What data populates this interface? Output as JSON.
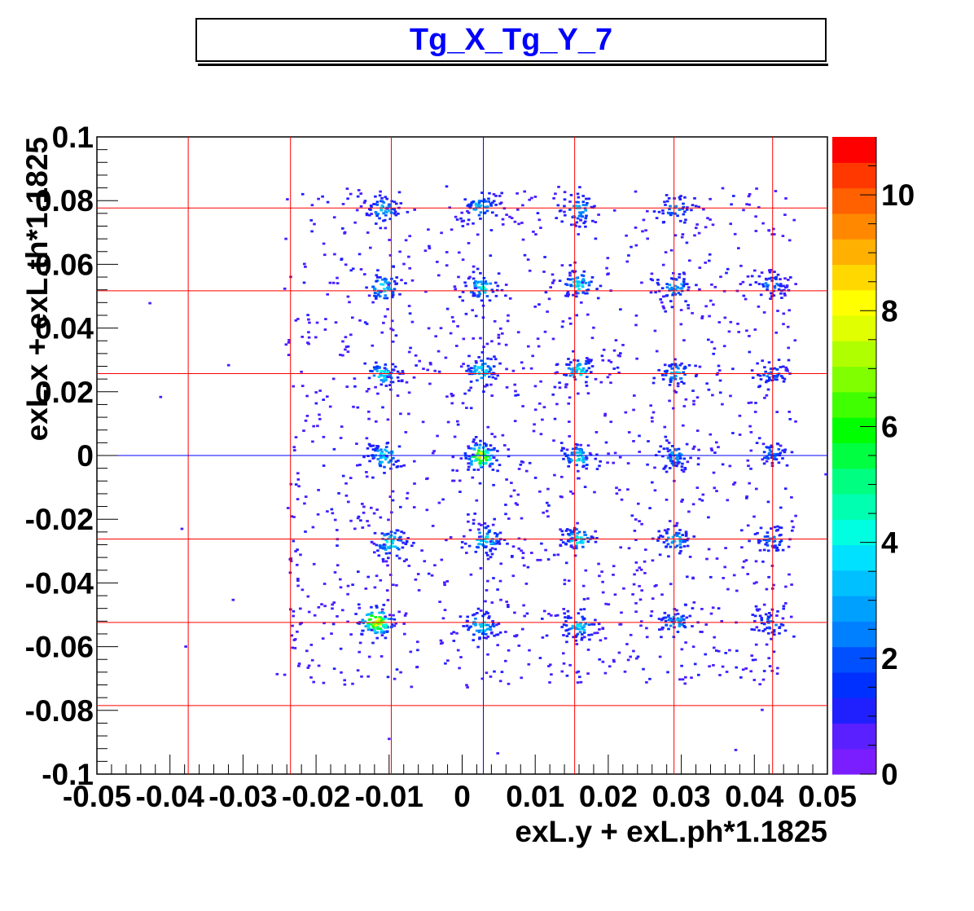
{
  "chart_data": {
    "type": "heatmap",
    "title": "Tg_X_Tg_Y_7",
    "xlabel": "exL.y + exL.ph*1.1825",
    "ylabel": "exL.x + exL.th*1.1825",
    "xlim": [
      -0.05,
      0.05
    ],
    "ylim": [
      -0.1,
      0.1
    ],
    "x_tick_labels": [
      "-0.05",
      "-0.04",
      "-0.03",
      "-0.02",
      "-0.01",
      "0",
      "0.01",
      "0.02",
      "0.03",
      "0.04",
      "0.05"
    ],
    "y_tick_labels": [
      "0.1",
      "0.08",
      "0.06",
      "0.04",
      "0.02",
      "0",
      "-0.02",
      "-0.04",
      "-0.06",
      "-0.08",
      "-0.1"
    ],
    "z_range": [
      0,
      11
    ],
    "colorbar_tick_labels": [
      "0",
      "2",
      "4",
      "6",
      "8",
      "10"
    ],
    "grid": false,
    "reference_lines": {
      "vertical_red_x": [
        -0.0375,
        -0.0235,
        -0.0097,
        0.0154,
        0.029,
        0.0425
      ],
      "vertical_blue_x": [
        0.0029
      ],
      "horizontal_red_y": [
        0.0777,
        0.0517,
        0.0257,
        -0.0262,
        -0.0524,
        -0.0785
      ],
      "horizontal_blue_y": [
        0.0
      ]
    },
    "clusters": [
      {
        "x": -0.011,
        "y": 0.0775,
        "peak": 4
      },
      {
        "x": 0.0024,
        "y": 0.0785,
        "peak": 4
      },
      {
        "x": 0.0157,
        "y": 0.0775,
        "peak": 4
      },
      {
        "x": 0.029,
        "y": 0.0775,
        "peak": 3
      },
      {
        "x": -0.011,
        "y": 0.053,
        "peak": 5
      },
      {
        "x": 0.0024,
        "y": 0.053,
        "peak": 5
      },
      {
        "x": 0.0157,
        "y": 0.054,
        "peak": 5
      },
      {
        "x": 0.029,
        "y": 0.053,
        "peak": 4
      },
      {
        "x": 0.0422,
        "y": 0.054,
        "peak": 3
      },
      {
        "x": -0.011,
        "y": 0.026,
        "peak": 5
      },
      {
        "x": 0.0024,
        "y": 0.027,
        "peak": 5
      },
      {
        "x": 0.0157,
        "y": 0.027,
        "peak": 5
      },
      {
        "x": 0.029,
        "y": 0.026,
        "peak": 4
      },
      {
        "x": 0.0422,
        "y": 0.026,
        "peak": 3
      },
      {
        "x": -0.011,
        "y": 0.0,
        "peak": 5
      },
      {
        "x": 0.0024,
        "y": 0.0,
        "peak": 9
      },
      {
        "x": 0.0157,
        "y": 0.0,
        "peak": 5
      },
      {
        "x": 0.029,
        "y": 0.0,
        "peak": 4
      },
      {
        "x": 0.0422,
        "y": 0.001,
        "peak": 3
      },
      {
        "x": -0.01,
        "y": -0.027,
        "peak": 5
      },
      {
        "x": 0.003,
        "y": -0.026,
        "peak": 5
      },
      {
        "x": 0.0157,
        "y": -0.026,
        "peak": 5
      },
      {
        "x": 0.029,
        "y": -0.026,
        "peak": 4
      },
      {
        "x": 0.0422,
        "y": -0.026,
        "peak": 3
      },
      {
        "x": -0.012,
        "y": -0.052,
        "peak": 10
      },
      {
        "x": 0.0024,
        "y": -0.053,
        "peak": 5
      },
      {
        "x": 0.0157,
        "y": -0.053,
        "peak": 5
      },
      {
        "x": 0.029,
        "y": -0.052,
        "peak": 4
      },
      {
        "x": 0.0422,
        "y": -0.052,
        "peak": 3
      }
    ],
    "colors": {
      "reference_red": "#ff0000",
      "reference_blue": "#0000ff",
      "title": "#0000ff",
      "palette": [
        "#7a1eff",
        "#5a20ff",
        "#2020ff",
        "#0030ff",
        "#0050ff",
        "#0080ff",
        "#00a0ff",
        "#00c0ff",
        "#00e0ff",
        "#00ffe0",
        "#00ffb0",
        "#00ff80",
        "#00ff40",
        "#00ff00",
        "#40ff00",
        "#80ff00",
        "#b0ff00",
        "#e0ff00",
        "#ffff00",
        "#ffd800",
        "#ffb000",
        "#ff8800",
        "#ff6000",
        "#ff3800",
        "#ff0000"
      ]
    }
  }
}
